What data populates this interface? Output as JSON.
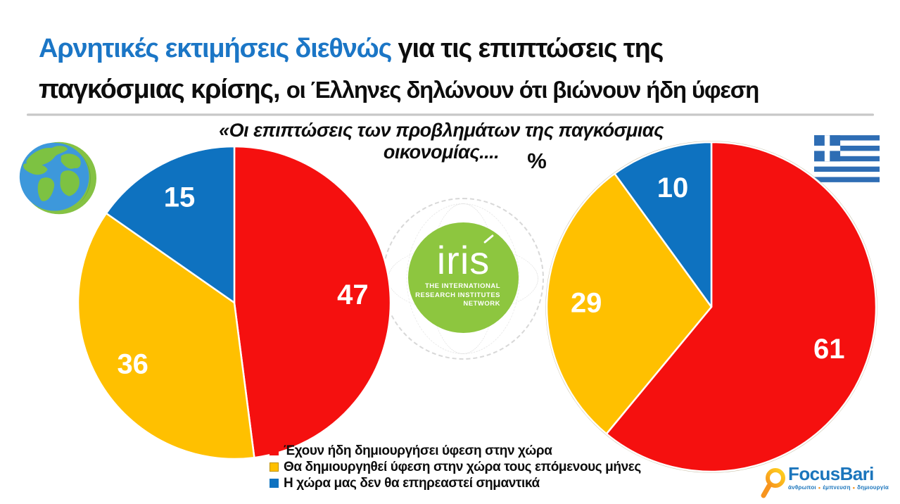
{
  "slide": {
    "title": {
      "line1_highlight": "Αρνητικές εκτιμήσεις διεθνώς",
      "line1_rest": " για τις επιπτώσεις της",
      "line2_large": "παγκόσμιας κρίσης, ",
      "line2_small": "οι Έλληνες δηλώνουν ότι βιώνουν ήδη ύφεση",
      "highlight_color": "#1B76C6",
      "text_color": "#0d0d0d"
    },
    "subtitle": "«Οι επιπτώσεις των προβλημάτων της παγκόσμιας οικονομίας....",
    "unit_label": "%"
  },
  "chart_data": {
    "type": "pie",
    "unit": "%",
    "title": "«Οι επιπτώσεις των προβλημάτων της παγκόσμιας οικονομίας....",
    "categories": [
      "Έχουν ήδη δημιουργήσει ύφεση στην χώρα",
      "Θα δημιουργηθεί ύφεση στην χώρα τους επόμενους μήνες",
      "Η χώρα μας δεν θα επηρεαστεί σημαντικά"
    ],
    "colors": [
      "#F5100F",
      "#FFC000",
      "#0E72C0"
    ],
    "swatch_border_colors": [
      "#F5100F",
      "#BF9000",
      "#0E72C0"
    ],
    "legend_position": "bottom",
    "slice_order": "clockwise from 12 o'clock",
    "pies": [
      {
        "id": "international",
        "icon": "globe-icon",
        "values": [
          47,
          36,
          15
        ]
      },
      {
        "id": "greece",
        "icon": "greek-flag-icon",
        "values": [
          61,
          29,
          10
        ]
      }
    ]
  },
  "iris_logo": {
    "name": "iris",
    "lines": [
      "THE INTERNATIONAL",
      "RESEARCH INSTITUTES",
      "NETWORK"
    ],
    "color": "#8DC63F"
  },
  "focusbari": {
    "brand": "FocusBari",
    "bullet": "•",
    "tagline_words": [
      "άνθρωποι",
      "έμπνευση",
      "δημιουργία"
    ],
    "blue": "#1B75BC",
    "orange": "#F7941E"
  }
}
